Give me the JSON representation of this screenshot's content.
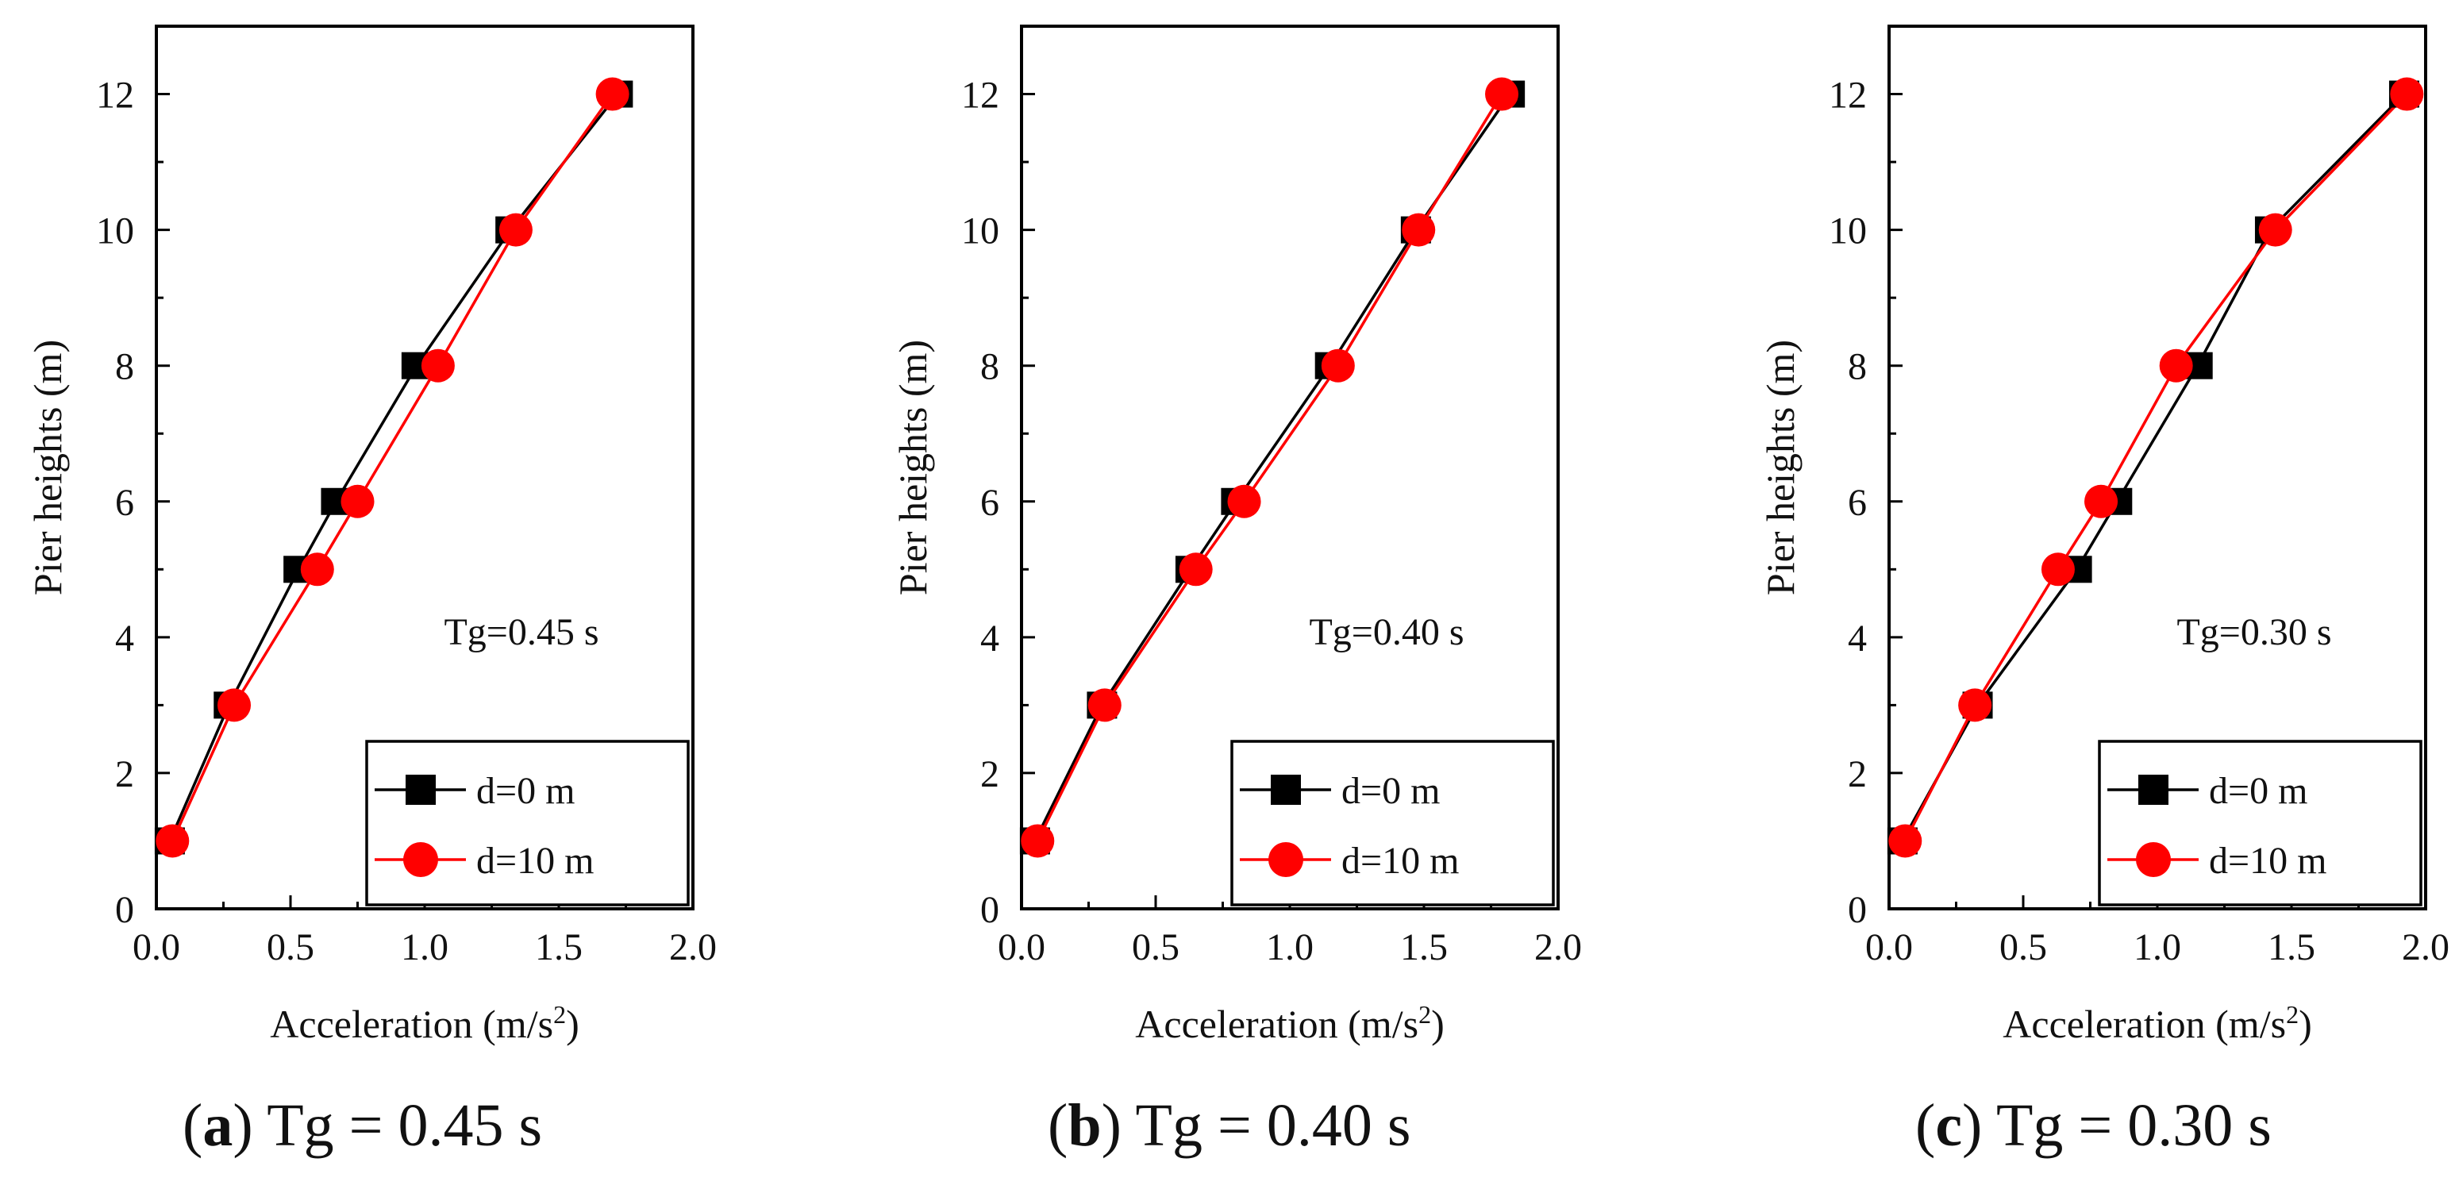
{
  "chart_data": [
    {
      "type": "line",
      "annotation": "Tg=0.45 s",
      "caption": {
        "letter": "a",
        "text": "Tg = 0.45 s"
      },
      "xlabel": "Acceleration (m/s",
      "xlabel_sup": "2",
      "xlabel_close": ")",
      "ylabel": "Pier heights (m)",
      "xlim": [
        0.0,
        2.0
      ],
      "ylim": [
        0,
        13
      ],
      "xticks": [
        "0.0",
        "0.5",
        "1.0",
        "1.5",
        "2.0"
      ],
      "yticks": [
        "0",
        "2",
        "4",
        "6",
        "8",
        "10",
        "12"
      ],
      "legend_position": "bottom-right",
      "series": [
        {
          "name": "d=0 m",
          "marker": "square",
          "color": "#000000",
          "x": [
            0.05,
            0.27,
            0.53,
            0.67,
            0.97,
            1.32,
            1.72
          ],
          "y": [
            1,
            3,
            5,
            6,
            8,
            10,
            12
          ]
        },
        {
          "name": "d=10 m",
          "marker": "circle",
          "color": "#ff0000",
          "x": [
            0.06,
            0.29,
            0.6,
            0.75,
            1.05,
            1.34,
            1.7
          ],
          "y": [
            1,
            3,
            5,
            6,
            8,
            10,
            12
          ]
        }
      ]
    },
    {
      "type": "line",
      "annotation": "Tg=0.40 s",
      "caption": {
        "letter": "b",
        "text": "Tg = 0.40 s"
      },
      "xlabel": "Acceleration (m/s",
      "xlabel_sup": "2",
      "xlabel_close": ")",
      "ylabel": "Pier heights (m)",
      "xlim": [
        0.0,
        2.0
      ],
      "ylim": [
        0,
        13
      ],
      "xticks": [
        "0.0",
        "0.5",
        "1.0",
        "1.5",
        "2.0"
      ],
      "yticks": [
        "0",
        "2",
        "4",
        "6",
        "8",
        "10",
        "12"
      ],
      "legend_position": "bottom-right",
      "series": [
        {
          "name": "d=0 m",
          "marker": "square",
          "color": "#000000",
          "x": [
            0.05,
            0.3,
            0.63,
            0.8,
            1.15,
            1.47,
            1.82
          ],
          "y": [
            1,
            3,
            5,
            6,
            8,
            10,
            12
          ]
        },
        {
          "name": "d=10 m",
          "marker": "circle",
          "color": "#ff0000",
          "x": [
            0.06,
            0.31,
            0.65,
            0.83,
            1.18,
            1.48,
            1.79
          ],
          "y": [
            1,
            3,
            5,
            6,
            8,
            10,
            12
          ]
        }
      ]
    },
    {
      "type": "line",
      "annotation": "Tg=0.30 s",
      "caption": {
        "letter": "c",
        "text": "Tg = 0.30 s"
      },
      "xlabel": "Acceleration (m/s",
      "xlabel_sup": "2",
      "xlabel_close": ")",
      "ylabel": "Pier heights (m)",
      "xlim": [
        0.0,
        2.0
      ],
      "ylim": [
        0,
        13
      ],
      "xticks": [
        "0.0",
        "0.5",
        "1.0",
        "1.5",
        "2.0"
      ],
      "yticks": [
        "0",
        "2",
        "4",
        "6",
        "8",
        "10",
        "12"
      ],
      "legend_position": "bottom-right",
      "series": [
        {
          "name": "d=0 m",
          "marker": "square",
          "color": "#000000",
          "x": [
            0.05,
            0.33,
            0.7,
            0.85,
            1.15,
            1.42,
            1.92
          ],
          "y": [
            1,
            3,
            5,
            6,
            8,
            10,
            12
          ]
        },
        {
          "name": "d=10 m",
          "marker": "circle",
          "color": "#ff0000",
          "x": [
            0.06,
            0.32,
            0.63,
            0.79,
            1.07,
            1.44,
            1.93
          ],
          "y": [
            1,
            3,
            5,
            6,
            8,
            10,
            12
          ]
        }
      ]
    }
  ]
}
